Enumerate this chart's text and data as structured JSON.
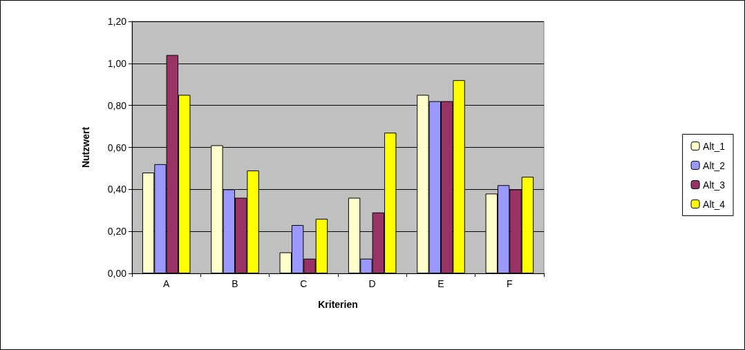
{
  "chart_data": {
    "type": "bar",
    "xlabel": "Kriterien",
    "ylabel": "Nutzwert",
    "categories": [
      "A",
      "B",
      "C",
      "D",
      "E",
      "F"
    ],
    "series": [
      {
        "name": "Alt_1",
        "color": "#ffffcc",
        "values": [
          0.48,
          0.61,
          0.1,
          0.36,
          0.85,
          0.38
        ]
      },
      {
        "name": "Alt_2",
        "color": "#9999ff",
        "values": [
          0.52,
          0.4,
          0.23,
          0.07,
          0.82,
          0.42
        ]
      },
      {
        "name": "Alt_3",
        "color": "#993366",
        "values": [
          1.04,
          0.36,
          0.07,
          0.29,
          0.82,
          0.4
        ]
      },
      {
        "name": "Alt_4",
        "color": "#ffff00",
        "values": [
          0.85,
          0.49,
          0.26,
          0.67,
          0.92,
          0.46
        ]
      }
    ],
    "ylim": [
      0,
      1.2
    ],
    "yticks": [
      {
        "value": 0,
        "label": "0,00"
      },
      {
        "value": 0.2,
        "label": "0,20"
      },
      {
        "value": 0.4,
        "label": "0,40"
      },
      {
        "value": 0.6,
        "label": "0,60"
      },
      {
        "value": 0.8,
        "label": "0,80"
      },
      {
        "value": 1,
        "label": "1,00"
      },
      {
        "value": 1.2,
        "label": "1,20"
      }
    ],
    "grid": "y",
    "legend": "right"
  }
}
